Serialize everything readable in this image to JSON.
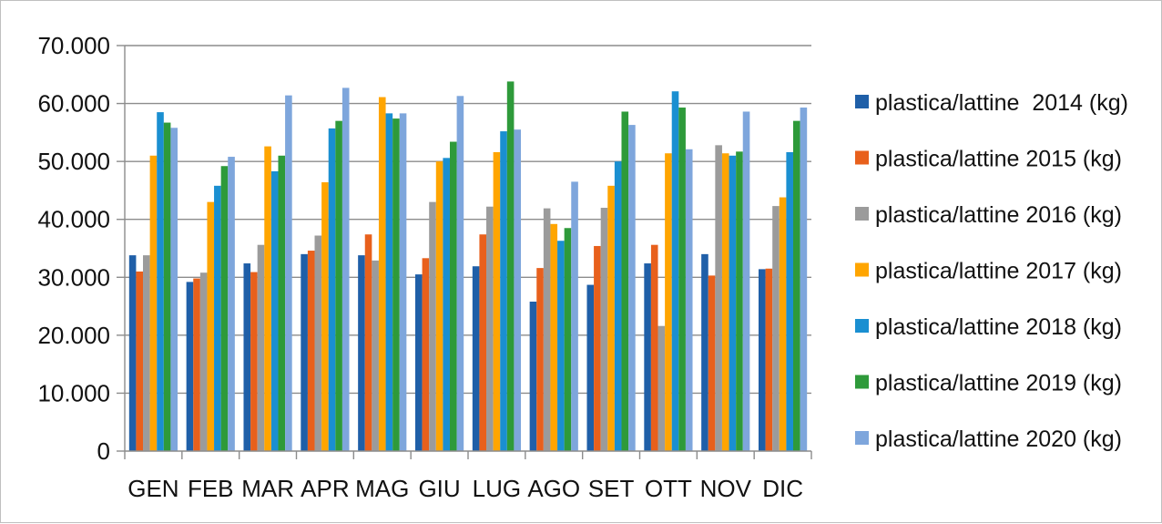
{
  "chart_data": {
    "type": "bar",
    "title": "",
    "xlabel": "",
    "ylabel": "",
    "ylim": [
      0,
      70000
    ],
    "y_ticks": [
      0,
      10000,
      20000,
      30000,
      40000,
      50000,
      60000,
      70000
    ],
    "y_tick_labels": [
      "0",
      "10.000",
      "20.000",
      "30.000",
      "40.000",
      "50.000",
      "60.000",
      "70.000"
    ],
    "grid": "horizontal",
    "legend_position": "right",
    "categories": [
      "GEN",
      "FEB",
      "MAR",
      "APR",
      "MAG",
      "GIU",
      "LUG",
      "AGO",
      "SET",
      "OTT",
      "NOV",
      "DIC"
    ],
    "series": [
      {
        "name": "plastica/lattine  2014 (kg)",
        "color": "#1f5fa8",
        "values": [
          33800,
          29200,
          32400,
          34000,
          33800,
          30500,
          31900,
          25800,
          28700,
          32400,
          34000,
          31400
        ]
      },
      {
        "name": "plastica/lattine 2015 (kg)",
        "color": "#e8601c",
        "values": [
          31000,
          29800,
          30900,
          34600,
          37400,
          33300,
          37400,
          31600,
          35400,
          35600,
          30300,
          31500
        ]
      },
      {
        "name": "plastica/lattine 2016 (kg)",
        "color": "#9b9b9b",
        "values": [
          33800,
          30800,
          35600,
          37200,
          32900,
          43000,
          42200,
          41900,
          42000,
          21600,
          52800,
          42300
        ]
      },
      {
        "name": "plastica/lattine 2017 (kg)",
        "color": "#ffa500",
        "values": [
          51000,
          43000,
          52600,
          46400,
          61100,
          50000,
          51600,
          39200,
          45800,
          51400,
          51400,
          43800
        ]
      },
      {
        "name": "plastica/lattine 2018 (kg)",
        "color": "#1a8fd1",
        "values": [
          58500,
          45800,
          48300,
          55700,
          58300,
          50600,
          55200,
          36300,
          50000,
          62100,
          51000,
          51600
        ]
      },
      {
        "name": "plastica/lattine 2019 (kg)",
        "color": "#2e9a3a",
        "values": [
          56700,
          49200,
          51000,
          57000,
          57400,
          53400,
          63800,
          38500,
          58600,
          59300,
          51700,
          57000
        ]
      },
      {
        "name": "plastica/lattine 2020 (kg)",
        "color": "#7ea6dc",
        "values": [
          55800,
          50800,
          61400,
          62700,
          58300,
          61300,
          55500,
          46500,
          56300,
          52100,
          58600,
          59300
        ]
      }
    ]
  }
}
